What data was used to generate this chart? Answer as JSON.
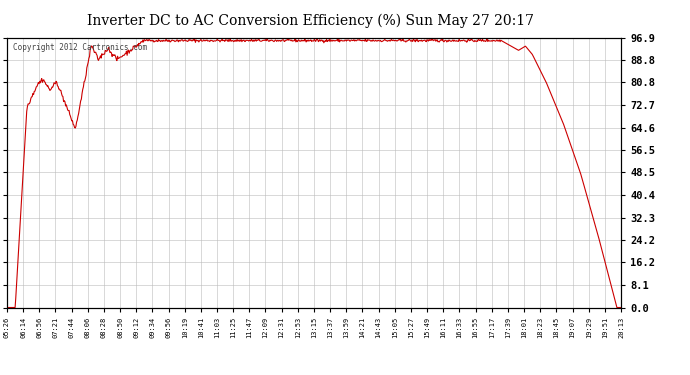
{
  "title": "Inverter DC to AC Conversion Efficiency (%) Sun May 27 20:17",
  "copyright": "Copyright 2012 Cartronics.com",
  "line_color": "#cc0000",
  "bg_color": "#ffffff",
  "plot_bg_color": "#ffffff",
  "grid_color": "#bbbbbb",
  "yticks": [
    0.0,
    8.1,
    16.2,
    24.2,
    32.3,
    40.4,
    48.5,
    56.5,
    64.6,
    72.7,
    80.8,
    88.8,
    96.9
  ],
  "ymin": 0.0,
  "ymax": 96.9,
  "xtick_labels": [
    "05:26",
    "06:14",
    "06:56",
    "07:21",
    "07:44",
    "08:06",
    "08:28",
    "08:50",
    "09:12",
    "09:34",
    "09:56",
    "10:19",
    "10:41",
    "11:03",
    "11:25",
    "11:47",
    "12:09",
    "12:31",
    "12:53",
    "13:15",
    "13:37",
    "13:59",
    "14:21",
    "14:43",
    "15:05",
    "15:27",
    "15:49",
    "16:11",
    "16:33",
    "16:55",
    "17:17",
    "17:39",
    "18:01",
    "18:23",
    "18:45",
    "19:07",
    "19:29",
    "19:51",
    "20:13"
  ]
}
